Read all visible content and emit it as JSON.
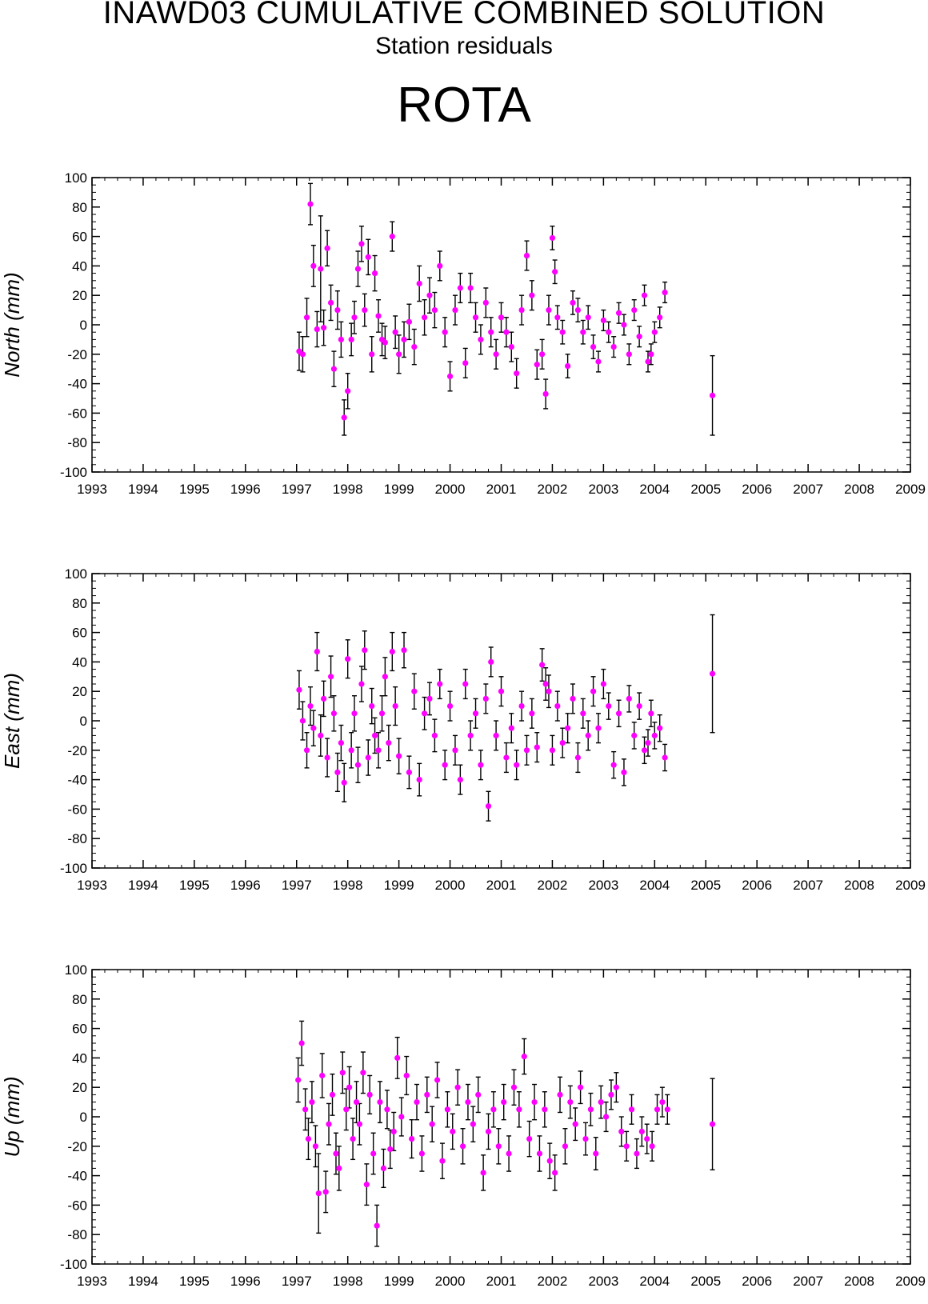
{
  "header": {
    "title": "INAWD03 CUMULATIVE COMBINED SOLUTION",
    "subtitle": "Station residuals",
    "station": "ROTA"
  },
  "colors": {
    "point": "#ff00ff",
    "errorbar": "#000000",
    "axes": "#000000"
  },
  "chart_data": [
    {
      "type": "scatter",
      "ylabel": "North (mm)",
      "xlim": [
        1993,
        2009
      ],
      "ylim": [
        -100,
        100
      ],
      "x_ticks": [
        1993,
        1994,
        1995,
        1996,
        1997,
        1998,
        1999,
        2000,
        2001,
        2002,
        2003,
        2004,
        2005,
        2006,
        2007,
        2008,
        2009
      ],
      "y_ticks": [
        100,
        80,
        60,
        40,
        20,
        0,
        -20,
        -40,
        -60,
        -80,
        -100
      ],
      "grid": false,
      "series": [
        {
          "x": [
            1997.05,
            1997.12,
            1997.2,
            1997.27,
            1997.33,
            1997.4,
            1997.47,
            1997.53,
            1997.6,
            1997.67,
            1997.73,
            1997.8,
            1997.87,
            1997.93,
            1998.0,
            1998.07,
            1998.13,
            1998.2,
            1998.27,
            1998.33,
            1998.4,
            1998.47,
            1998.53,
            1998.6,
            1998.67,
            1998.73,
            1998.87,
            1998.93,
            1999.0,
            1999.1,
            1999.2,
            1999.3,
            1999.4,
            1999.5,
            1999.6,
            1999.7,
            1999.8,
            1999.9,
            2000.0,
            2000.1,
            2000.2,
            2000.3,
            2000.4,
            2000.5,
            2000.6,
            2000.7,
            2000.8,
            2000.9,
            2001.0,
            2001.1,
            2001.2,
            2001.3,
            2001.4,
            2001.5,
            2001.6,
            2001.7,
            2001.8,
            2001.87,
            2001.93,
            2002.0,
            2002.05,
            2002.1,
            2002.2,
            2002.3,
            2002.4,
            2002.5,
            2002.6,
            2002.7,
            2002.8,
            2002.9,
            2003.0,
            2003.1,
            2003.2,
            2003.3,
            2003.4,
            2003.5,
            2003.6,
            2003.7,
            2003.8,
            2003.87,
            2003.93,
            2004.0,
            2004.1,
            2004.2,
            2005.13
          ],
          "y": [
            -18,
            -20,
            5,
            82,
            40,
            -3,
            38,
            -2,
            52,
            15,
            -30,
            10,
            -10,
            -63,
            -45,
            -10,
            5,
            38,
            55,
            10,
            46,
            -20,
            35,
            6,
            -10,
            -12,
            60,
            -5,
            -20,
            -10,
            2,
            -15,
            28,
            5,
            20,
            10,
            40,
            -5,
            -35,
            10,
            25,
            -26,
            25,
            5,
            -10,
            15,
            -5,
            -20,
            5,
            -5,
            -15,
            -33,
            10,
            47,
            20,
            -27,
            -20,
            -47,
            10,
            59,
            36,
            5,
            -5,
            -28,
            15,
            10,
            -5,
            5,
            -15,
            -25,
            3,
            -5,
            -15,
            8,
            0,
            -20,
            10,
            -8,
            20,
            -25,
            -20,
            -5,
            5,
            22,
            -48
          ],
          "err": [
            13,
            12,
            13,
            14,
            14,
            12,
            36,
            12,
            12,
            12,
            12,
            13,
            12,
            12,
            12,
            11,
            11,
            12,
            12,
            11,
            12,
            12,
            12,
            11,
            11,
            11,
            10,
            11,
            13,
            12,
            12,
            12,
            12,
            12,
            12,
            12,
            10,
            10,
            10,
            10,
            10,
            10,
            10,
            10,
            10,
            10,
            10,
            10,
            10,
            10,
            10,
            10,
            10,
            10,
            10,
            10,
            10,
            10,
            10,
            8,
            8,
            8,
            8,
            8,
            8,
            8,
            8,
            8,
            8,
            7,
            7,
            7,
            7,
            7,
            7,
            7,
            7,
            7,
            7,
            7,
            7,
            7,
            7,
            7,
            27
          ]
        }
      ]
    },
    {
      "type": "scatter",
      "ylabel": "East (mm)",
      "xlim": [
        1993,
        2009
      ],
      "ylim": [
        -100,
        100
      ],
      "x_ticks": [
        1993,
        1994,
        1995,
        1996,
        1997,
        1998,
        1999,
        2000,
        2001,
        2002,
        2003,
        2004,
        2005,
        2006,
        2007,
        2008,
        2009
      ],
      "y_ticks": [
        100,
        80,
        60,
        40,
        20,
        0,
        -20,
        -40,
        -60,
        -80,
        -100
      ],
      "grid": false,
      "series": [
        {
          "x": [
            1997.05,
            1997.12,
            1997.2,
            1997.27,
            1997.33,
            1997.4,
            1997.47,
            1997.53,
            1997.6,
            1997.67,
            1997.73,
            1997.8,
            1997.87,
            1997.93,
            1998.0,
            1998.07,
            1998.13,
            1998.2,
            1998.27,
            1998.33,
            1998.4,
            1998.47,
            1998.53,
            1998.6,
            1998.67,
            1998.73,
            1998.8,
            1998.87,
            1998.93,
            1999.0,
            1999.1,
            1999.2,
            1999.3,
            1999.4,
            1999.5,
            1999.6,
            1999.7,
            1999.8,
            1999.9,
            2000.0,
            2000.1,
            2000.2,
            2000.3,
            2000.4,
            2000.5,
            2000.6,
            2000.7,
            2000.75,
            2000.8,
            2000.9,
            2001.0,
            2001.1,
            2001.2,
            2001.3,
            2001.4,
            2001.5,
            2001.6,
            2001.7,
            2001.8,
            2001.87,
            2001.93,
            2002.0,
            2002.1,
            2002.2,
            2002.3,
            2002.4,
            2002.5,
            2002.6,
            2002.7,
            2002.8,
            2002.9,
            2003.0,
            2003.1,
            2003.2,
            2003.3,
            2003.4,
            2003.5,
            2003.6,
            2003.7,
            2003.8,
            2003.87,
            2003.93,
            2004.0,
            2004.1,
            2004.2,
            2005.13
          ],
          "y": [
            21,
            0,
            -20,
            10,
            -5,
            47,
            -10,
            15,
            -25,
            30,
            5,
            -35,
            -15,
            -42,
            42,
            -20,
            5,
            -30,
            25,
            48,
            -25,
            10,
            -10,
            -20,
            5,
            30,
            -15,
            47,
            10,
            -24,
            48,
            -35,
            20,
            -40,
            5,
            15,
            -10,
            25,
            -30,
            10,
            -20,
            -40,
            25,
            -10,
            5,
            -30,
            15,
            -58,
            40,
            -10,
            20,
            -25,
            -5,
            -30,
            10,
            -20,
            5,
            -18,
            38,
            25,
            20,
            -20,
            10,
            -15,
            -5,
            15,
            -25,
            5,
            -10,
            20,
            -5,
            25,
            10,
            -30,
            5,
            -35,
            15,
            -10,
            10,
            -20,
            -15,
            5,
            -10,
            -5,
            -25,
            32
          ],
          "err": [
            13,
            13,
            12,
            13,
            12,
            13,
            14,
            12,
            13,
            14,
            12,
            13,
            12,
            13,
            13,
            12,
            12,
            12,
            12,
            13,
            12,
            12,
            12,
            12,
            12,
            13,
            12,
            13,
            13,
            12,
            12,
            11,
            12,
            11,
            11,
            11,
            11,
            10,
            10,
            10,
            10,
            10,
            10,
            10,
            10,
            10,
            10,
            10,
            10,
            10,
            10,
            10,
            10,
            10,
            10,
            10,
            10,
            10,
            11,
            11,
            11,
            10,
            10,
            10,
            10,
            10,
            10,
            10,
            10,
            10,
            10,
            10,
            9,
            9,
            9,
            9,
            9,
            9,
            9,
            9,
            9,
            9,
            9,
            9,
            9,
            40
          ]
        }
      ]
    },
    {
      "type": "scatter",
      "ylabel": "Up (mm)",
      "xlim": [
        1993,
        2009
      ],
      "ylim": [
        -100,
        100
      ],
      "x_ticks": [
        1993,
        1994,
        1995,
        1996,
        1997,
        1998,
        1999,
        2000,
        2001,
        2002,
        2003,
        2004,
        2005,
        2006,
        2007,
        2008,
        2009
      ],
      "y_ticks": [
        100,
        80,
        60,
        40,
        20,
        0,
        -20,
        -40,
        -60,
        -80,
        -100
      ],
      "grid": false,
      "series": [
        {
          "x": [
            1997.03,
            1997.1,
            1997.17,
            1997.23,
            1997.3,
            1997.37,
            1997.43,
            1997.5,
            1997.57,
            1997.63,
            1997.7,
            1997.77,
            1997.83,
            1997.9,
            1997.97,
            1998.03,
            1998.1,
            1998.17,
            1998.23,
            1998.3,
            1998.37,
            1998.43,
            1998.5,
            1998.57,
            1998.63,
            1998.7,
            1998.77,
            1998.83,
            1998.9,
            1998.97,
            1999.05,
            1999.15,
            1999.25,
            1999.35,
            1999.45,
            1999.55,
            1999.65,
            1999.75,
            1999.85,
            1999.95,
            2000.05,
            2000.15,
            2000.25,
            2000.35,
            2000.45,
            2000.55,
            2000.65,
            2000.75,
            2000.85,
            2000.95,
            2001.05,
            2001.15,
            2001.25,
            2001.35,
            2001.45,
            2001.55,
            2001.65,
            2001.75,
            2001.85,
            2001.95,
            2002.05,
            2002.15,
            2002.25,
            2002.35,
            2002.45,
            2002.55,
            2002.65,
            2002.75,
            2002.85,
            2002.95,
            2003.05,
            2003.15,
            2003.25,
            2003.35,
            2003.45,
            2003.55,
            2003.65,
            2003.75,
            2003.85,
            2003.95,
            2004.05,
            2004.15,
            2004.25,
            2005.13
          ],
          "y": [
            25,
            50,
            5,
            -15,
            10,
            -20,
            -52,
            28,
            -51,
            -5,
            15,
            -25,
            -35,
            30,
            5,
            20,
            -15,
            10,
            -5,
            30,
            -46,
            15,
            -25,
            -74,
            10,
            -35,
            5,
            -22,
            -10,
            40,
            0,
            28,
            -15,
            10,
            -25,
            15,
            -5,
            25,
            -30,
            5,
            -10,
            20,
            -20,
            10,
            -5,
            15,
            -38,
            -10,
            5,
            -20,
            10,
            -25,
            20,
            5,
            41,
            -15,
            10,
            -25,
            5,
            -30,
            -38,
            15,
            -20,
            10,
            -5,
            20,
            -15,
            5,
            -25,
            10,
            0,
            15,
            20,
            -10,
            -20,
            5,
            -25,
            -10,
            -15,
            -20,
            5,
            10,
            5,
            -5
          ],
          "err": [
            15,
            15,
            14,
            14,
            14,
            14,
            27,
            15,
            14,
            14,
            14,
            14,
            15,
            14,
            14,
            14,
            14,
            14,
            14,
            14,
            14,
            13,
            14,
            14,
            14,
            13,
            13,
            13,
            13,
            14,
            13,
            13,
            13,
            12,
            12,
            12,
            12,
            12,
            12,
            12,
            12,
            12,
            12,
            12,
            12,
            12,
            12,
            12,
            12,
            12,
            12,
            12,
            12,
            12,
            12,
            12,
            12,
            12,
            12,
            12,
            12,
            12,
            12,
            11,
            11,
            11,
            11,
            11,
            11,
            11,
            10,
            10,
            10,
            10,
            10,
            10,
            10,
            10,
            10,
            10,
            10,
            10,
            10,
            31
          ]
        }
      ]
    }
  ]
}
